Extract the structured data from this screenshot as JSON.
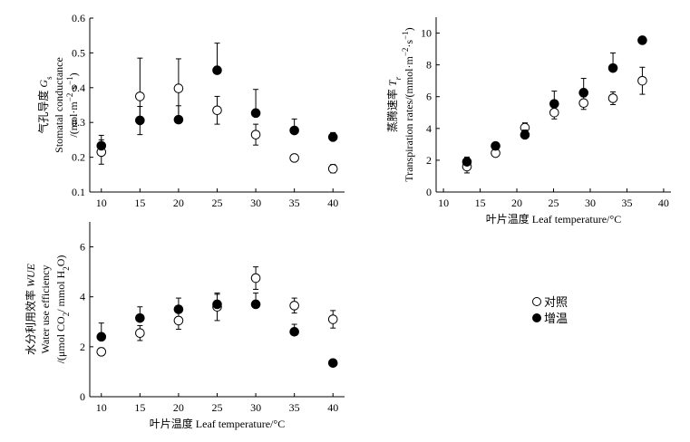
{
  "legend": {
    "items": [
      {
        "label": "对照",
        "marker": "open-circle"
      },
      {
        "label": "增温",
        "marker": "filled-circle"
      }
    ]
  },
  "colors": {
    "ink": "#000000",
    "open_fill": "#ffffff"
  },
  "chart_data": [
    {
      "id": "gs",
      "type": "scatter",
      "ylabel_lines": [
        {
          "runs": [
            {
              "t": "气孔导度 "
            },
            {
              "t": "G",
              "i": true
            },
            {
              "t": "s",
              "sub": true
            }
          ]
        },
        {
          "runs": [
            {
              "t": "Stomatal conductance"
            }
          ]
        },
        {
          "runs": [
            {
              "t": "/(mol·m"
            },
            {
              "t": "−2",
              "sup": true
            },
            {
              "t": "·s"
            },
            {
              "t": "−1",
              "sup": true
            },
            {
              "t": ")"
            }
          ]
        }
      ],
      "xlabel": "",
      "xlim": [
        8.5,
        41.5
      ],
      "ylim": [
        0.1,
        0.6
      ],
      "xticks": [
        10,
        15,
        20,
        25,
        30,
        35,
        40
      ],
      "yticks": [
        0.1,
        0.2,
        0.3,
        0.4,
        0.5,
        0.6
      ],
      "ytick_labels": [
        "0.1",
        "0.2",
        "0.3",
        "0.4",
        "0.5",
        "0.6"
      ],
      "series": [
        {
          "marker": "open",
          "x": [
            10,
            15,
            20,
            25,
            30,
            35,
            40
          ],
          "y": [
            0.215,
            0.375,
            0.398,
            0.335,
            0.265,
            0.198,
            0.167
          ],
          "err": [
            0.035,
            0.11,
            0.085,
            0.04,
            0.03,
            0.01,
            0.012
          ]
        },
        {
          "marker": "filled",
          "x": [
            10,
            15,
            20,
            25,
            30,
            35,
            40
          ],
          "y": [
            0.233,
            0.306,
            0.308,
            0.45,
            0.327,
            0.277,
            0.258
          ],
          "err": [
            0.03,
            0.04,
            0.04,
            0.078,
            0.068,
            0.033,
            0.013
          ]
        }
      ]
    },
    {
      "id": "tr",
      "type": "scatter",
      "ylabel_lines": [
        {
          "runs": [
            {
              "t": "蒸腾速率 "
            },
            {
              "t": "T",
              "i": true
            },
            {
              "t": "r",
              "sub": true,
              "i": true
            }
          ]
        },
        {
          "runs": [
            {
              "t": "Transpiration rates/(mmol·m"
            },
            {
              "t": "−2",
              "sup": true
            },
            {
              "t": "·s"
            },
            {
              "t": "−1",
              "sup": true
            },
            {
              "t": ")"
            }
          ]
        }
      ],
      "xlabel": "叶片温度  Leaf temperature/°C",
      "xlim": [
        9,
        41
      ],
      "ylim": [
        0,
        11
      ],
      "xticks": [
        10,
        15,
        20,
        25,
        30,
        35,
        40
      ],
      "yticks": [
        0,
        2,
        4,
        6,
        8,
        10
      ],
      "ytick_labels": [
        "0",
        "2",
        "4",
        "6",
        "8",
        "10"
      ],
      "series": [
        {
          "marker": "open",
          "x": [
            13.2,
            17.1,
            21.1,
            25.1,
            29.1,
            33.1,
            37.1
          ],
          "y": [
            1.6,
            2.45,
            4.05,
            5.0,
            5.6,
            5.9,
            7.0
          ],
          "err": [
            0.4,
            0.2,
            0.3,
            0.4,
            0.4,
            0.4,
            0.85
          ]
        },
        {
          "marker": "filled",
          "x": [
            13.2,
            17.1,
            21.1,
            25.1,
            29.1,
            33.1,
            37.1
          ],
          "y": [
            1.9,
            2.9,
            3.6,
            5.55,
            6.25,
            7.8,
            9.55
          ],
          "err": [
            0.3,
            0.15,
            0.3,
            0.8,
            0.9,
            0.95,
            0.15
          ]
        }
      ]
    },
    {
      "id": "wue",
      "type": "scatter",
      "ylabel_lines": [
        {
          "runs": [
            {
              "t": "水分利用效率 "
            },
            {
              "t": "WUE",
              "i": true
            }
          ]
        },
        {
          "runs": [
            {
              "t": "Water use efficiency"
            }
          ]
        },
        {
          "runs": [
            {
              "t": "/(μmol CO"
            },
            {
              "t": "2",
              "sub": true
            },
            {
              "t": "/ mmol H"
            },
            {
              "t": "2",
              "sub": true
            },
            {
              "t": "O)"
            }
          ]
        }
      ],
      "xlabel": "叶片温度  Leaf temperature/°C",
      "xlim": [
        8.5,
        41.5
      ],
      "ylim": [
        0,
        7
      ],
      "xticks": [
        10,
        15,
        20,
        25,
        30,
        35,
        40
      ],
      "yticks": [
        0,
        2,
        4,
        6
      ],
      "ytick_labels": [
        "0",
        "2",
        "4",
        "6"
      ],
      "series": [
        {
          "marker": "open",
          "x": [
            10,
            15,
            20,
            25,
            30,
            35,
            40
          ],
          "y": [
            1.8,
            2.55,
            3.05,
            3.6,
            4.75,
            3.65,
            3.1
          ],
          "err": [
            0.15,
            0.3,
            0.35,
            0.55,
            0.45,
            0.3,
            0.35
          ]
        },
        {
          "marker": "filled",
          "x": [
            10,
            15,
            20,
            25,
            30,
            35,
            40
          ],
          "y": [
            2.4,
            3.15,
            3.5,
            3.7,
            3.7,
            2.6,
            1.35
          ],
          "err": [
            0.55,
            0.45,
            0.45,
            0.4,
            0.45,
            0.3,
            0.05
          ]
        }
      ]
    }
  ]
}
